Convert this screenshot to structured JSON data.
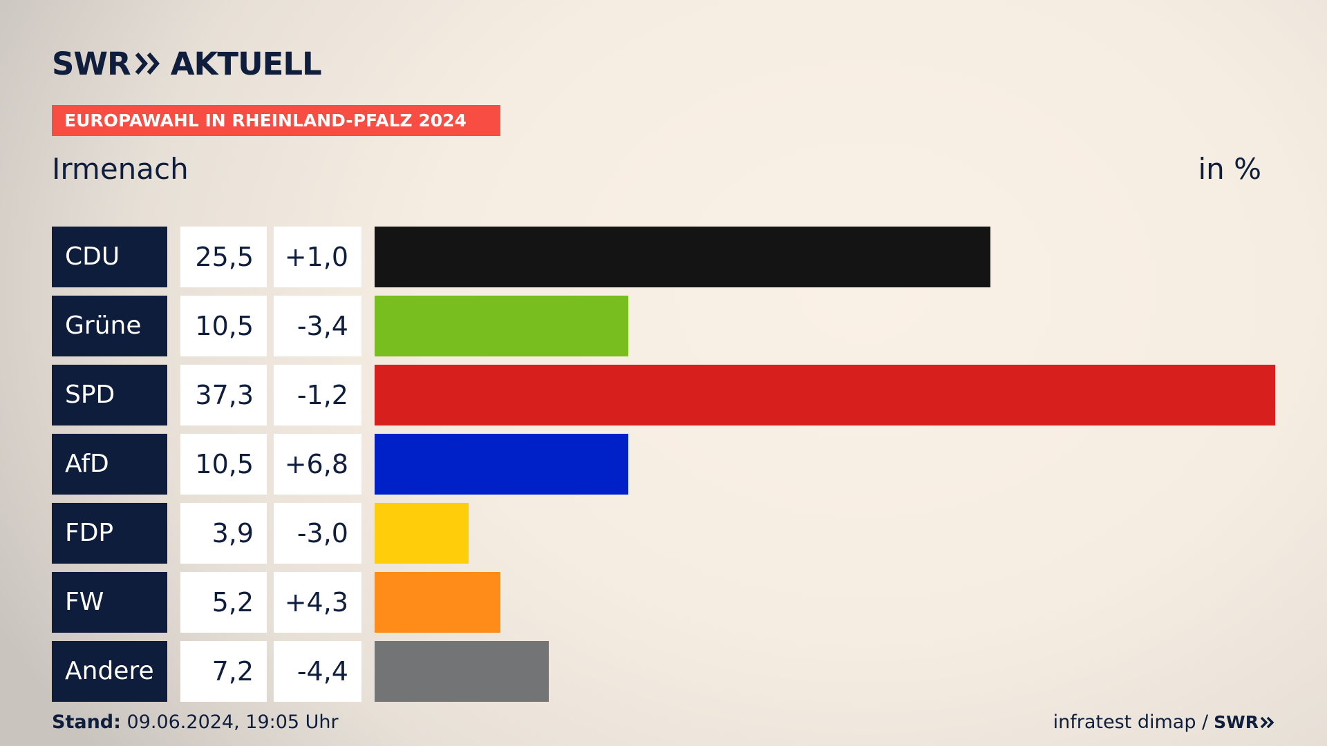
{
  "header": {
    "brand_prefix": "SWR",
    "brand_name": "AKTUELL",
    "banner": "EUROPAWAHL IN RHEINLAND-PFALZ 2024"
  },
  "subtitle": "Irmenach",
  "unit_label": "in %",
  "colors": {
    "navy": "#0e1d3c",
    "banner_red": "#f74d43",
    "CDU": "#141414",
    "Grüne": "#78be1e",
    "SPD": "#d7201e",
    "AfD": "#0020c8",
    "FDP": "#ffcd0a",
    "FW": "#ff8c19",
    "Andere": "#737475"
  },
  "chart_data": {
    "type": "bar",
    "orientation": "horizontal",
    "categories": [
      "CDU",
      "Grüne",
      "SPD",
      "AfD",
      "FDP",
      "FW",
      "Andere"
    ],
    "values": [
      25.5,
      10.5,
      37.3,
      10.5,
      3.9,
      5.2,
      7.2
    ],
    "value_labels": [
      "25,5",
      "10,5",
      "37,3",
      "10,5",
      "3,9",
      "5,2",
      "7,2"
    ],
    "changes": [
      1.0,
      -3.4,
      -1.2,
      6.8,
      -3.0,
      4.3,
      -4.4
    ],
    "change_labels": [
      "+1,0",
      "-3,4",
      "-1,2",
      "+6,8",
      "-3,0",
      "+4,3",
      "-4,4"
    ],
    "bar_colors": [
      "#141414",
      "#78be1e",
      "#d7201e",
      "#0020c8",
      "#ffcd0a",
      "#ff8c19",
      "#737475"
    ],
    "title": "Irmenach",
    "unit": "in %"
  },
  "footer": {
    "stand_label": "Stand:",
    "stand_value": "09.06.2024, 19:05 Uhr",
    "source": "infratest dimap /",
    "source_logo": "SWR"
  }
}
